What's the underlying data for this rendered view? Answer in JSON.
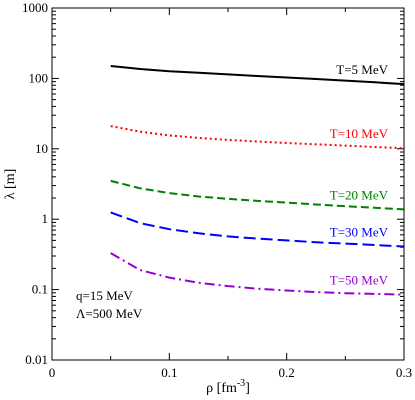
{
  "chart_data": {
    "type": "line",
    "xlabel_base": "ρ [fm",
    "xlabel_sup": "-3",
    "xlabel_close": "]",
    "ylabel": "λ [m]",
    "xlim": [
      0,
      0.3
    ],
    "ylim": [
      0.01,
      1000
    ],
    "yscale": "log",
    "xticks": [
      {
        "value": 0,
        "label": "0"
      },
      {
        "value": 0.1,
        "label": "0.1"
      },
      {
        "value": 0.2,
        "label": "0.2"
      },
      {
        "value": 0.3,
        "label": "0.3"
      }
    ],
    "yticks": [
      {
        "value": 0.01,
        "label": "0.01"
      },
      {
        "value": 0.1,
        "label": "0.1"
      },
      {
        "value": 1,
        "label": "1"
      },
      {
        "value": 10,
        "label": "10"
      },
      {
        "value": 100,
        "label": "100"
      },
      {
        "value": 1000,
        "label": "1000"
      }
    ],
    "annotations": [
      "q=15 MeV",
      "Λ=500 MeV"
    ],
    "series": [
      {
        "name": "T=5 MeV",
        "color": "#000000",
        "dash": "solid",
        "x": [
          0.05,
          0.075,
          0.1,
          0.125,
          0.15,
          0.175,
          0.2,
          0.225,
          0.25,
          0.275,
          0.3
        ],
        "y": [
          150,
          136,
          126,
          120,
          114,
          108,
          103,
          98,
          93,
          88,
          83
        ]
      },
      {
        "name": "T=10 MeV",
        "color": "#ff0000",
        "dash": "dotted",
        "x": [
          0.05,
          0.075,
          0.1,
          0.125,
          0.15,
          0.175,
          0.2,
          0.225,
          0.25,
          0.275,
          0.3
        ],
        "y": [
          21,
          17.5,
          15.5,
          14.3,
          13.4,
          12.7,
          12.1,
          11.6,
          11.1,
          10.6,
          10.2
        ]
      },
      {
        "name": "T=20 MeV",
        "color": "#008000",
        "dash": "dashed",
        "x": [
          0.05,
          0.075,
          0.1,
          0.125,
          0.15,
          0.175,
          0.2,
          0.225,
          0.25,
          0.275,
          0.3
        ],
        "y": [
          3.5,
          2.75,
          2.35,
          2.1,
          1.95,
          1.82,
          1.72,
          1.62,
          1.53,
          1.45,
          1.38
        ]
      },
      {
        "name": "T=30 MeV",
        "color": "#0000ff",
        "dash": "longdash",
        "x": [
          0.05,
          0.075,
          0.1,
          0.125,
          0.15,
          0.175,
          0.2,
          0.225,
          0.25,
          0.275,
          0.3
        ],
        "y": [
          1.25,
          0.88,
          0.72,
          0.63,
          0.57,
          0.53,
          0.5,
          0.47,
          0.45,
          0.43,
          0.41
        ]
      },
      {
        "name": "T=50 MeV",
        "color": "#9400d3",
        "dash": "dashdot",
        "x": [
          0.05,
          0.075,
          0.1,
          0.125,
          0.15,
          0.175,
          0.2,
          0.225,
          0.25,
          0.275,
          0.3
        ],
        "y": [
          0.33,
          0.19,
          0.148,
          0.125,
          0.112,
          0.103,
          0.097,
          0.092,
          0.089,
          0.087,
          0.085
        ]
      }
    ]
  }
}
